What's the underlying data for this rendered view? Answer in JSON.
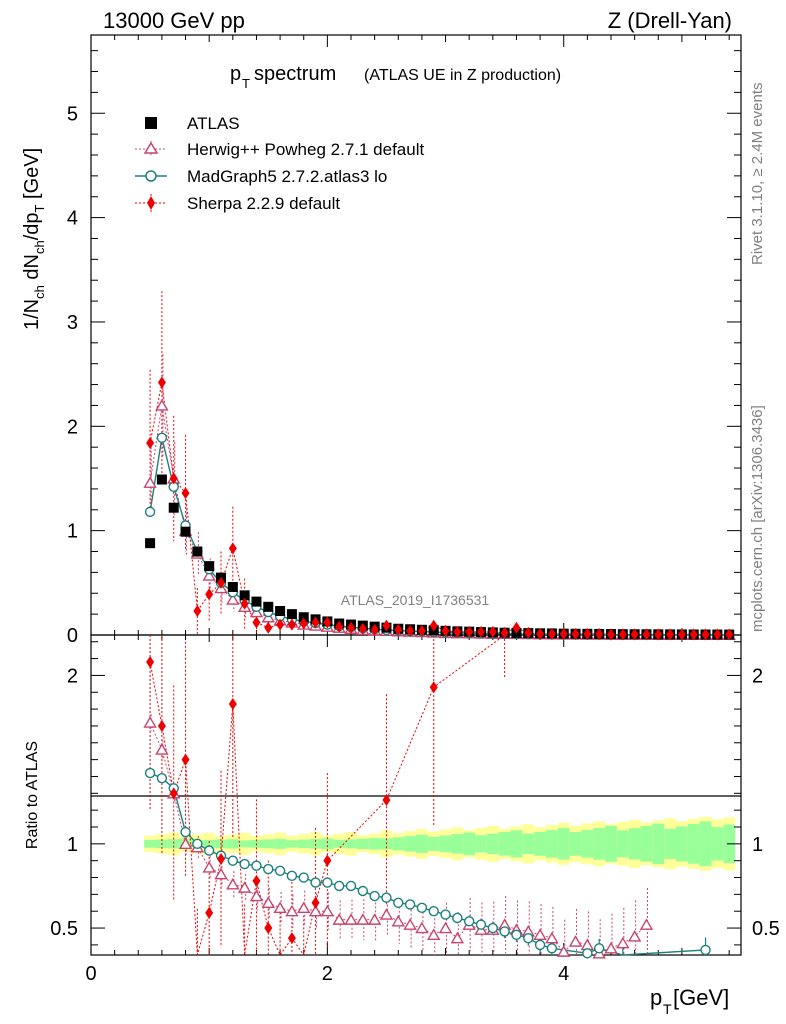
{
  "header": {
    "left": "13000 GeV pp",
    "right": "Z (Drell-Yan)"
  },
  "side_labels": {
    "top": "Rivet 3.1.10, ≥ 2.4M events",
    "bottom": "mcplots.cern.ch [arXiv:1306.3436]"
  },
  "chart_data": {
    "type": "scatter",
    "title": {
      "main": "p",
      "sub": "T",
      "rest": " spectrum",
      "note": "(ATLAS UE in Z production)"
    },
    "watermark": "ATLAS_2019_I1736531",
    "xlabel": {
      "main": "p",
      "sub": "T",
      "rest": " [GeV]"
    },
    "ylabel": {
      "text": "1/N_ch dN_ch/dp_T [GeV]"
    },
    "ratio_ylabel": "Ratio to ATLAS",
    "xlim": [
      0,
      5.5
    ],
    "ylim_main": [
      0,
      5.75
    ],
    "ylim_ratio": [
      0.34,
      2.24
    ],
    "x_ticks_main": [
      0,
      2,
      4
    ],
    "y_ticks_main": [
      "0",
      "1",
      "2",
      "3",
      "4",
      "5"
    ],
    "x_ticks_ratio": [
      "0",
      "2",
      "4"
    ],
    "y_ticks_ratio": [
      "0.5",
      "1",
      "2"
    ],
    "legend": [
      {
        "name": "ATLAS",
        "marker": "square",
        "color": "#000000"
      },
      {
        "name": "Herwig++ Powheg 2.7.1 default",
        "marker": "triangle",
        "color": "#c8446e"
      },
      {
        "name": "MadGraph5 2.7.2.atlas3 lo",
        "marker": "circle",
        "color": "#1a8080"
      },
      {
        "name": "Sherpa 2.2.9 default",
        "marker": "diamond",
        "color": "#ee0000"
      }
    ],
    "x": [
      0.5,
      0.6,
      0.7,
      0.8,
      0.9,
      1.0,
      1.1,
      1.2,
      1.3,
      1.4,
      1.5,
      1.6,
      1.7,
      1.8,
      1.9,
      2.0,
      2.1,
      2.2,
      2.3,
      2.4,
      2.5,
      2.6,
      2.7,
      2.8,
      2.9,
      3.0,
      3.1,
      3.2,
      3.3,
      3.4,
      3.5,
      3.6,
      3.7,
      3.8,
      3.9,
      4.0,
      4.1,
      4.2,
      4.3,
      4.4,
      4.5,
      4.6,
      4.7,
      4.8,
      4.9,
      5.0,
      5.1,
      5.2,
      5.3,
      5.4
    ],
    "series": [
      {
        "name": "ATLAS",
        "values": [
          0.88,
          1.49,
          1.22,
          0.99,
          0.8,
          0.66,
          0.55,
          0.46,
          0.38,
          0.32,
          0.27,
          0.23,
          0.2,
          0.17,
          0.15,
          0.13,
          0.11,
          0.1,
          0.09,
          0.08,
          0.07,
          0.06,
          0.055,
          0.05,
          0.045,
          0.04,
          0.035,
          0.032,
          0.028,
          0.025,
          0.022,
          0.02,
          0.018,
          0.016,
          0.015,
          0.013,
          0.012,
          0.011,
          0.01,
          0.009,
          0.008,
          0.0075,
          0.007,
          0.0065,
          0.006,
          0.0055,
          0.005,
          0.0047,
          0.0044,
          0.0041
        ]
      },
      {
        "name": "Herwig++ Powheg 2.7.1 default",
        "values": [
          1.46,
          2.2,
          1.5,
          1.0,
          0.78,
          0.57,
          0.45,
          0.34,
          0.27,
          0.22,
          0.17,
          0.14,
          0.12,
          0.1,
          0.09,
          0.08,
          0.07,
          0.06,
          0.05,
          0.044,
          0.04,
          0.036,
          0.032,
          0.028,
          0.024,
          0.02,
          0.018,
          0.016,
          0.014,
          0.012,
          0.011,
          0.01,
          0.009,
          0.008,
          0.007,
          0.006,
          0.005,
          0.0045,
          0.004,
          0.0035,
          0.003,
          0.0028,
          0.0026,
          0.0024,
          0.0022,
          0.002,
          0.0018,
          0.0016,
          0.0015,
          0.0014
        ]
      },
      {
        "name": "MadGraph5 2.7.2.atlas3 lo",
        "values": [
          1.18,
          1.89,
          1.42,
          1.05,
          0.8,
          0.63,
          0.5,
          0.41,
          0.33,
          0.27,
          0.22,
          0.18,
          0.15,
          0.13,
          0.115,
          0.1,
          0.085,
          0.075,
          0.065,
          0.055,
          0.048,
          0.042,
          0.038,
          0.034,
          0.028,
          0.025,
          0.021,
          0.019,
          0.016,
          0.014,
          0.012,
          0.01,
          0.008,
          0.007,
          0.006,
          0.005,
          0.0045,
          0.004,
          0.0035,
          0.003,
          0.0028,
          0.0026,
          0.0024,
          0.0022,
          0.002,
          0.0019,
          0.0018,
          0.0017,
          0.0016,
          0.0015
        ]
      },
      {
        "name": "Sherpa 2.2.9 default",
        "values": [
          1.84,
          2.42,
          1.5,
          1.36,
          0.23,
          0.39,
          0.5,
          0.83,
          0.3,
          0.12,
          0.07,
          0.1,
          0.1,
          0.11,
          0.12,
          0.12,
          0.08,
          0.07,
          0.06,
          0.05,
          0.09,
          0.05,
          0.04,
          0.04,
          0.09,
          0.04,
          0.03,
          0.03,
          0.03,
          0.03,
          0.02,
          0.07,
          0.02,
          0.01,
          0.01,
          0.01,
          0.01,
          0.01,
          0.01,
          0.005,
          0.005,
          0.005,
          0.005,
          0.005,
          0.005,
          0.005,
          0.005,
          0.005,
          0.005,
          0.005
        ]
      }
    ],
    "ratio_series": [
      {
        "name": "Herwig++ Powheg 2.7.1 default",
        "x": [
          0.5,
          0.6,
          0.7,
          0.8,
          0.9,
          1.0,
          1.1,
          1.2,
          1.3,
          1.4,
          1.5,
          1.6,
          1.7,
          1.8,
          1.9,
          2.0,
          2.1,
          2.2,
          2.3,
          2.4,
          2.5,
          2.6,
          2.7,
          2.8,
          2.9,
          3.0,
          3.1,
          3.2,
          3.3,
          3.4,
          3.5,
          3.6,
          3.7,
          3.8,
          3.9,
          4.0,
          4.1,
          4.2,
          4.3,
          4.4,
          4.5,
          4.6,
          4.7
        ],
        "values": [
          1.72,
          1.56,
          1.3,
          1.0,
          0.98,
          0.86,
          0.82,
          0.76,
          0.74,
          0.69,
          0.65,
          0.62,
          0.6,
          0.62,
          0.6,
          0.6,
          0.55,
          0.55,
          0.55,
          0.55,
          0.58,
          0.54,
          0.52,
          0.5,
          0.46,
          0.5,
          0.44,
          0.52,
          0.49,
          0.49,
          0.52,
          0.49,
          0.48,
          0.46,
          0.44,
          0.36,
          0.42,
          0.4,
          0.35,
          0.38,
          0.41,
          0.45,
          0.52
        ]
      },
      {
        "name": "MadGraph5 2.7.2.atlas3 lo",
        "x": [
          0.5,
          0.6,
          0.7,
          0.8,
          0.9,
          1.0,
          1.1,
          1.2,
          1.3,
          1.4,
          1.5,
          1.6,
          1.7,
          1.8,
          1.9,
          2.0,
          2.1,
          2.2,
          2.3,
          2.4,
          2.5,
          2.6,
          2.7,
          2.8,
          2.9,
          3.0,
          3.1,
          3.2,
          3.3,
          3.4,
          3.5,
          3.6,
          3.7,
          3.8,
          3.9,
          4.2,
          4.3,
          4.5,
          5.2
        ],
        "values": [
          1.42,
          1.39,
          1.33,
          1.07,
          1.0,
          0.96,
          0.93,
          0.9,
          0.88,
          0.87,
          0.85,
          0.84,
          0.81,
          0.8,
          0.77,
          0.77,
          0.75,
          0.75,
          0.72,
          0.69,
          0.68,
          0.65,
          0.64,
          0.62,
          0.6,
          0.58,
          0.56,
          0.54,
          0.52,
          0.5,
          0.48,
          0.46,
          0.44,
          0.4,
          0.38,
          0.35,
          0.38,
          0.34,
          0.37
        ]
      },
      {
        "name": "Sherpa 2.2.9 default",
        "x": [
          0.5,
          0.6,
          0.7,
          0.8,
          0.9,
          1.0,
          1.1,
          1.2,
          1.3,
          1.4,
          1.5,
          1.6,
          1.7,
          1.8,
          1.9,
          2.0,
          2.5,
          2.9,
          3.5
        ],
        "values": [
          2.08,
          1.7,
          1.3,
          1.5,
          0.28,
          0.59,
          0.91,
          1.83,
          0.3,
          0.78,
          0.5,
          0.3,
          0.44,
          0.25,
          0.65,
          0.9,
          1.26,
          1.93,
          3.2
        ]
      }
    ]
  }
}
